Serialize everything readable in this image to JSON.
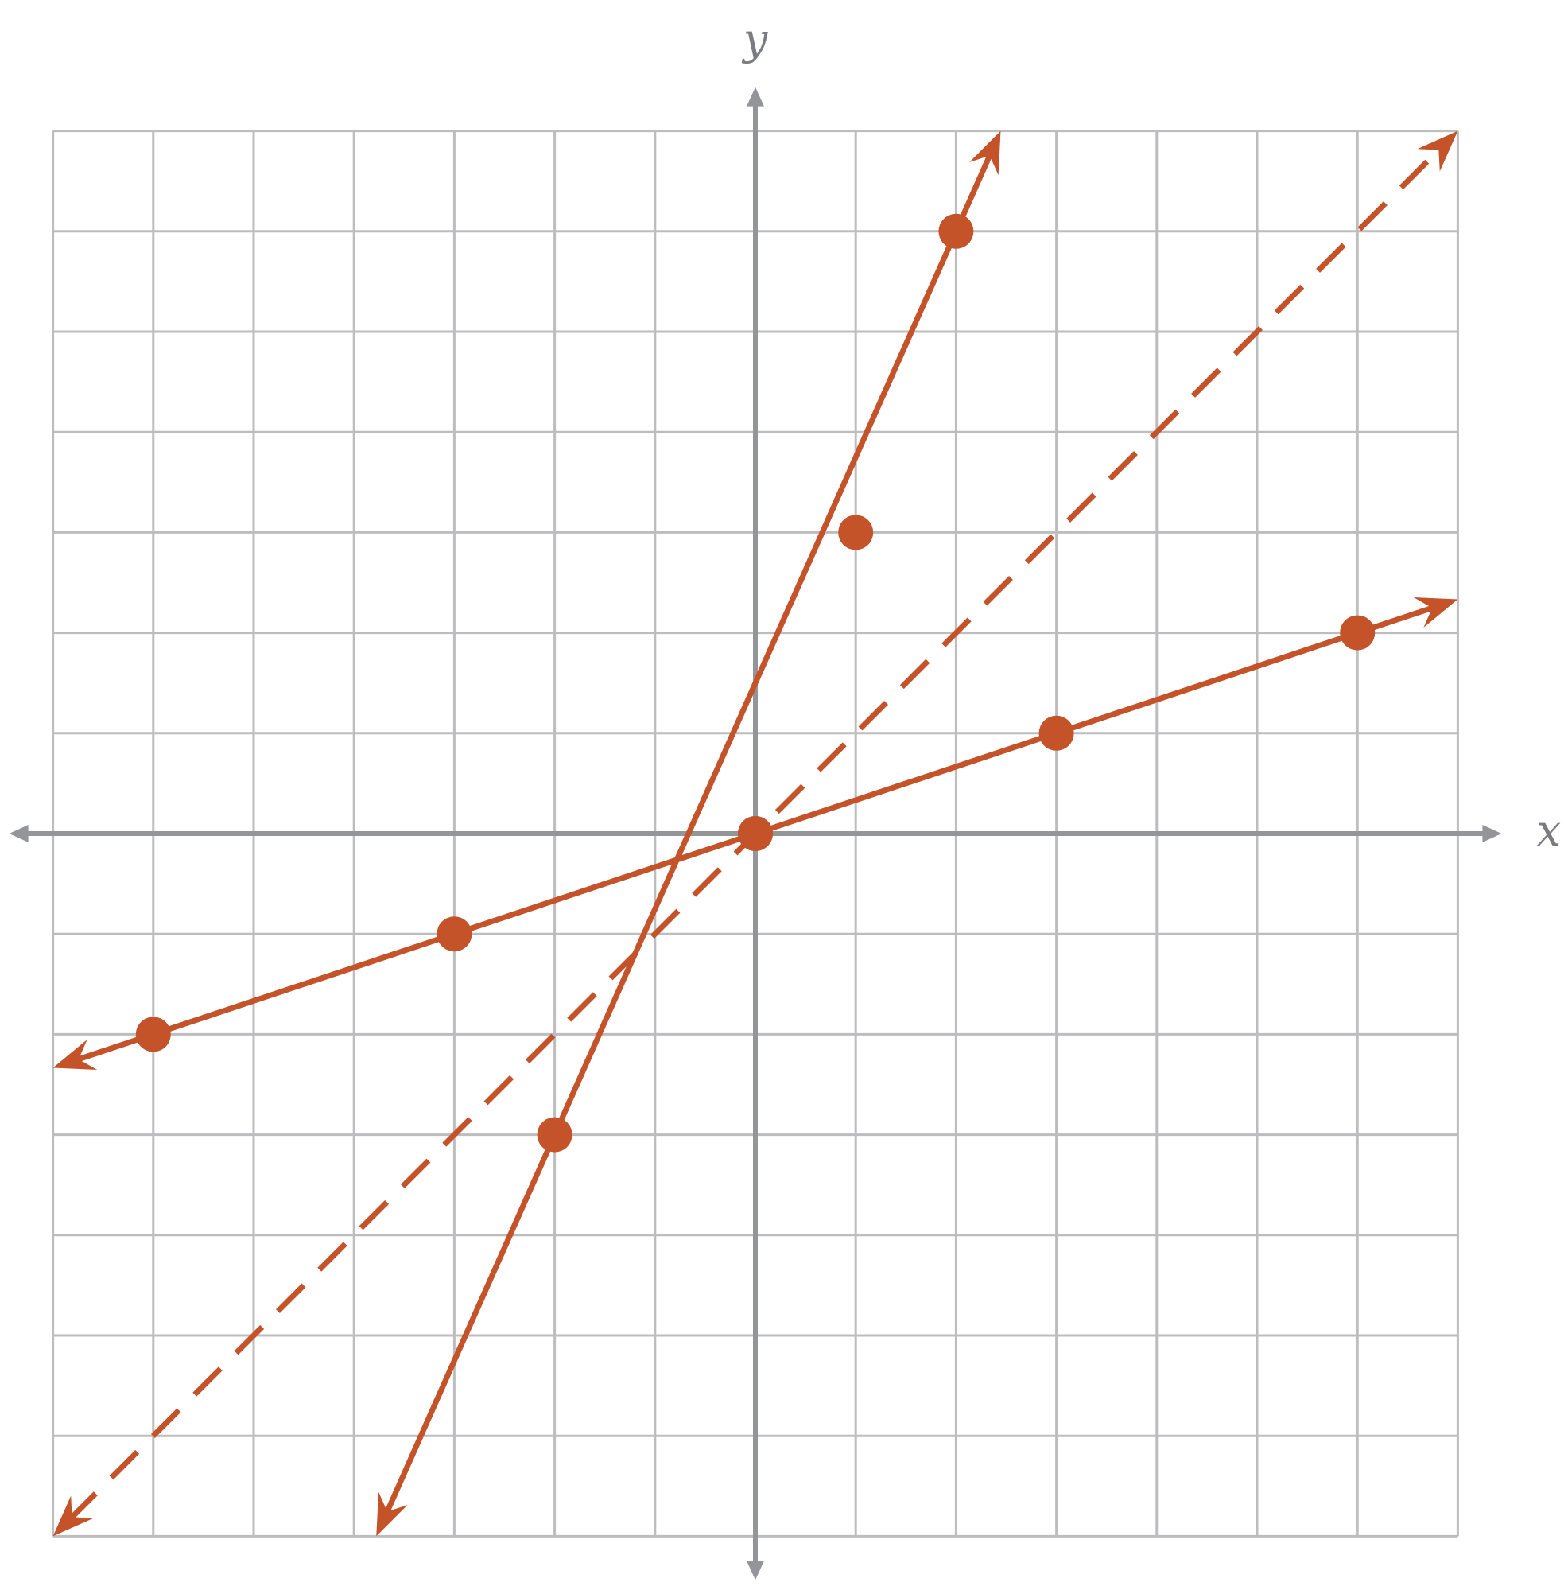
{
  "chart_data": {
    "type": "line",
    "title": "",
    "xlabel": "x",
    "ylabel": "y",
    "xlim": [
      -7,
      7
    ],
    "ylim": [
      -7,
      7
    ],
    "grid": true,
    "series": [
      {
        "style": "solid",
        "points": [
          [
            -2,
            -3
          ],
          [
            0,
            0
          ],
          [
            1,
            3
          ],
          [
            2,
            6
          ]
        ],
        "markers": true
      },
      {
        "style": "solid",
        "points": [
          [
            -6,
            -2
          ],
          [
            -3,
            -1
          ],
          [
            0,
            0
          ],
          [
            3,
            1
          ],
          [
            6,
            2
          ]
        ],
        "markers": true
      },
      {
        "style": "dashed",
        "points": [
          [
            -7,
            -7
          ],
          [
            7,
            7
          ]
        ],
        "markers": false
      }
    ]
  },
  "colors": {
    "series": "#c4532a",
    "grid": "#bdbdbf",
    "axis": "#939598",
    "label": "#7a7c80"
  }
}
